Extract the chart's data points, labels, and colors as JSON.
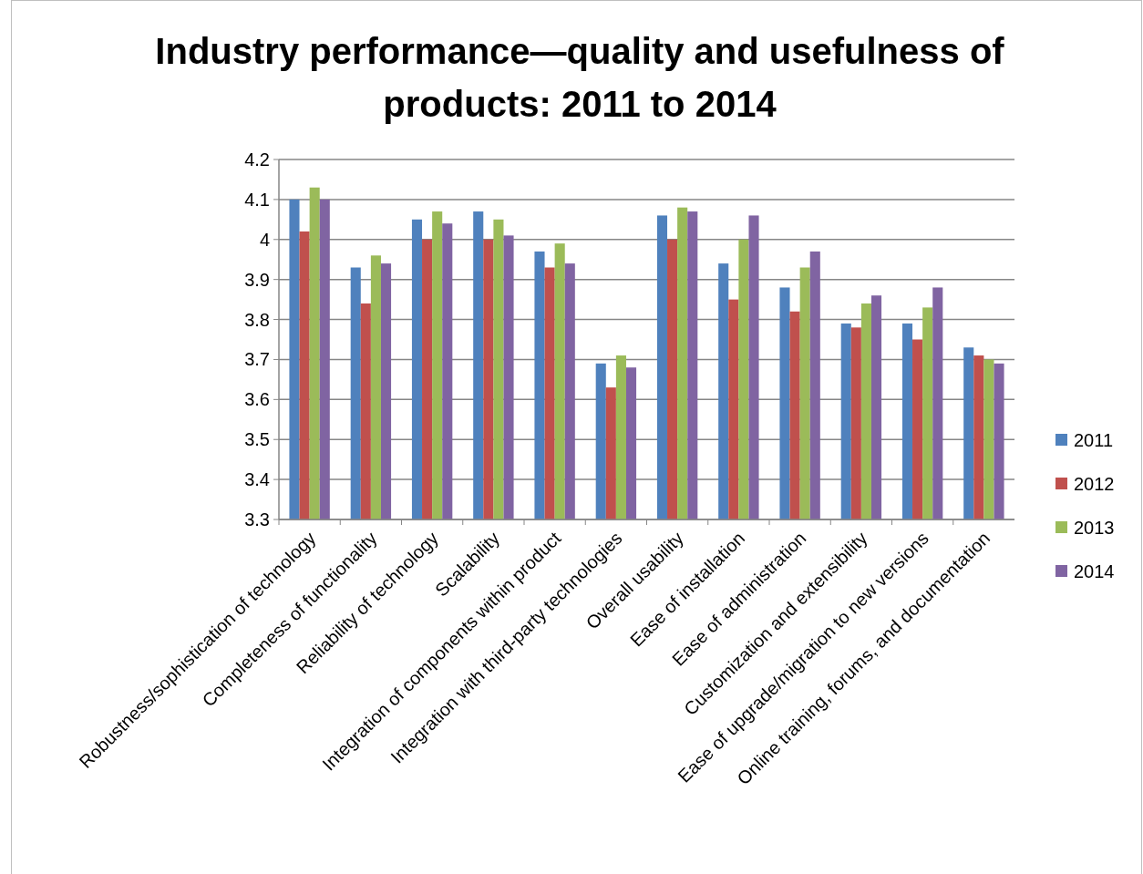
{
  "chart_data": {
    "type": "bar",
    "title": "Industry performance—quality and usefulness of products: 2011 to 2014",
    "categories": [
      "Robustness/sophistication of technology",
      "Completeness of functionality",
      "Reliability of technology",
      "Scalability",
      "Integration of components within product",
      "Integration with third-party technologies",
      "Overall usability",
      "Ease of installation",
      "Ease of administration",
      "Customization and extensibility",
      "Ease of upgrade/migration to new versions",
      "Online training, forums, and documentation"
    ],
    "series": [
      {
        "name": "2011",
        "color": "#4f81bd",
        "values": [
          4.1,
          3.93,
          4.05,
          4.07,
          3.97,
          3.69,
          4.06,
          3.94,
          3.88,
          3.79,
          3.79,
          3.73
        ]
      },
      {
        "name": "2012",
        "color": "#c0504d",
        "values": [
          4.02,
          3.84,
          4.0,
          4.0,
          3.93,
          3.63,
          4.0,
          3.85,
          3.82,
          3.78,
          3.75,
          3.71
        ]
      },
      {
        "name": "2013",
        "color": "#9bbb59",
        "values": [
          4.13,
          3.96,
          4.07,
          4.05,
          3.99,
          3.71,
          4.08,
          4.0,
          3.93,
          3.84,
          3.83,
          3.7
        ]
      },
      {
        "name": "2014",
        "color": "#8064a2",
        "values": [
          4.1,
          3.94,
          4.04,
          4.01,
          3.94,
          3.68,
          4.07,
          4.06,
          3.97,
          3.86,
          3.88,
          3.69
        ]
      }
    ],
    "ylim": [
      3.3,
      4.2
    ],
    "yticks": [
      3.3,
      3.4,
      3.5,
      3.6,
      3.7,
      3.8,
      3.9,
      4,
      4.1,
      4.2
    ],
    "grid": "y",
    "legend": "right"
  }
}
